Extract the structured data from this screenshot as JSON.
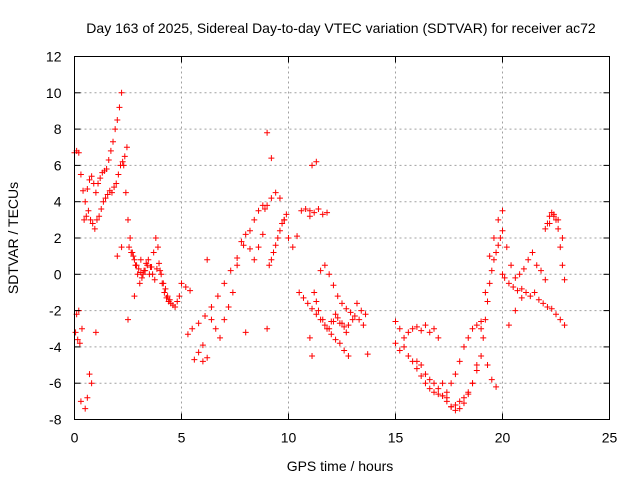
{
  "chart_data": {
    "type": "scatter",
    "title": "Day 163 of 2025, Sidereal Day-to-day VTEC variation (SDTVAR) for receiver ac72",
    "xlabel": "GPS time / hours",
    "ylabel": "SDTVAR / TECUs",
    "xlim": [
      0,
      25
    ],
    "ylim": [
      -8,
      12
    ],
    "xticks": [
      "0",
      "5",
      "10",
      "15",
      "20",
      "25"
    ],
    "yticks": [
      "-8",
      "-6",
      "-4",
      "-2",
      "0",
      "2",
      "4",
      "6",
      "8",
      "10",
      "12"
    ],
    "grid": true,
    "marker": "+",
    "color": "#ff0000",
    "series": [
      {
        "name": "SDTVAR",
        "x": [
          0.0,
          0.1,
          0.2,
          0.3,
          0.4,
          0.5,
          0.6,
          0.7,
          0.8,
          0.9,
          1.0,
          1.1,
          1.2,
          1.3,
          1.4,
          1.5,
          1.6,
          1.7,
          1.8,
          1.9,
          2.0,
          2.1,
          2.2,
          2.3,
          2.4,
          2.5,
          2.6,
          2.7,
          2.8,
          2.9,
          3.0,
          3.1,
          3.2,
          3.3,
          3.4,
          3.5,
          3.6,
          3.7,
          3.8,
          3.9,
          4.0,
          4.1,
          4.2,
          4.3,
          4.4,
          4.5,
          4.6,
          4.7,
          4.8,
          4.9,
          5.0,
          5.2,
          5.4,
          5.6,
          5.8,
          6.0,
          6.2,
          6.4,
          6.6,
          6.8,
          7.0,
          7.2,
          7.4,
          7.6,
          7.8,
          8.0,
          8.2,
          8.4,
          8.6,
          8.8,
          9.0,
          9.2,
          9.4,
          9.6,
          9.8,
          10.0,
          10.2,
          10.4,
          10.6,
          10.8,
          11.0,
          11.2,
          11.4,
          11.6,
          11.8,
          12.0,
          12.2,
          12.4,
          12.6,
          12.8,
          13.0,
          13.2,
          13.4,
          13.6,
          15.0,
          15.2,
          15.4,
          15.6,
          15.8,
          16.0,
          16.2,
          16.4,
          16.6,
          16.8,
          17.0,
          17.2,
          17.4,
          17.6,
          17.8,
          18.0,
          18.2,
          18.4,
          18.6,
          18.8,
          19.0,
          19.2,
          19.4,
          19.6,
          19.8,
          20.0,
          20.2,
          20.4,
          20.6,
          20.8,
          21.0,
          21.2,
          21.4,
          21.6,
          21.8,
          22.0,
          22.2,
          22.4,
          22.6,
          22.8,
          0.05,
          0.15,
          0.25,
          0.35,
          0.45,
          0.55,
          0.65,
          0.75,
          0.85,
          0.95,
          1.05,
          1.15,
          1.25,
          1.35,
          1.45,
          1.55,
          1.65,
          1.75,
          1.85,
          1.95,
          2.05,
          2.15,
          2.25,
          2.35,
          2.45,
          2.55,
          2.65,
          2.75,
          2.85,
          2.95,
          3.05,
          3.15,
          3.25,
          3.35,
          3.45,
          3.55,
          3.65,
          3.75,
          3.85,
          3.95,
          4.05,
          4.15,
          4.25,
          4.35,
          4.45,
          0.1,
          0.2,
          0.3,
          0.5,
          0.6,
          0.7,
          0.8,
          1.0,
          2.0,
          2.2,
          2.5,
          2.8,
          3.1,
          11.0,
          11.1,
          11.3,
          11.5,
          11.7,
          11.9,
          12.1,
          12.3,
          12.5,
          12.7,
          12.9,
          13.1,
          13.3,
          13.5,
          9.0,
          9.1,
          9.2,
          9.3,
          9.4,
          9.5,
          9.6,
          9.7,
          9.8,
          9.9,
          8.9,
          8.8,
          8.6,
          8.4,
          8.2,
          7.9,
          7.6,
          7.3,
          7.0,
          6.7,
          6.4,
          6.1,
          5.8,
          5.5,
          5.3,
          11.0,
          11.1,
          11.2,
          11.3,
          11.4,
          11.6,
          11.8,
          12.0,
          12.2,
          12.4,
          12.6,
          12.8,
          16.0,
          16.2,
          16.4,
          16.6,
          16.8,
          17.0,
          17.2,
          17.4,
          17.6,
          17.8,
          18.0,
          18.2,
          18.4,
          18.6,
          18.8,
          19.0,
          19.1,
          19.2,
          19.3,
          19.4,
          19.5,
          19.6,
          19.7,
          19.8,
          19.9,
          20.0,
          15.0,
          15.2,
          15.4,
          15.6,
          15.8,
          16.0,
          16.2,
          16.4,
          16.6,
          16.8,
          17.0,
          17.2,
          17.4,
          17.6,
          17.8,
          18.0,
          18.2,
          18.4,
          18.6,
          18.8,
          19.0,
          20.0,
          20.1,
          20.3,
          20.5,
          20.7,
          20.9,
          21.1,
          21.3,
          21.5,
          21.7,
          21.9,
          22.1,
          22.3,
          22.5,
          22.7,
          22.9,
          22.0,
          22.1,
          22.2,
          22.3,
          22.4,
          22.5,
          22.6,
          22.7,
          22.8,
          22.9,
          10.5,
          10.7,
          10.9,
          11.1,
          11.3,
          11.5,
          11.7,
          11.9,
          12.1,
          12.3,
          12.5,
          12.7,
          13.7,
          6.0,
          6.2,
          8.0,
          9.0,
          9.2,
          19.3,
          19.5,
          19.7,
          20.3,
          20.6,
          20.9
        ],
        "y": [
          6.7,
          6.8,
          6.7,
          5.5,
          4.6,
          4.0,
          4.7,
          5.2,
          5.4,
          5.0,
          4.5,
          5.0,
          5.3,
          5.6,
          5.7,
          5.8,
          6.3,
          6.8,
          7.3,
          8.0,
          8.5,
          9.2,
          10.0,
          6.0,
          4.5,
          3.0,
          2.0,
          1.2,
          0.8,
          0.5,
          0.3,
          0.1,
          0.0,
          0.2,
          0.5,
          0.0,
          0.4,
          1.2,
          2.0,
          1.5,
          0.2,
          -0.5,
          -1.0,
          -1.3,
          -1.5,
          -1.6,
          -1.7,
          -1.8,
          -1.5,
          -1.2,
          -0.5,
          -0.7,
          -0.9,
          -4.7,
          -4.3,
          -3.9,
          0.8,
          -2.5,
          -3.0,
          -3.5,
          -2.5,
          -1.8,
          -1.0,
          0.5,
          1.8,
          2.2,
          1.4,
          0.8,
          1.5,
          2.2,
          3.8,
          4.2,
          4.5,
          4.2,
          3.0,
          2.0,
          1.5,
          2.1,
          3.5,
          3.6,
          3.5,
          3.4,
          3.6,
          3.3,
          3.4,
          -2.6,
          -2.2,
          -2.7,
          -2.9,
          -2.8,
          -2.5,
          -1.6,
          -2.0,
          -2.2,
          -2.6,
          -3.0,
          -3.5,
          -3.2,
          -3.0,
          -2.9,
          -3.1,
          -2.8,
          -3.2,
          -3.0,
          -3.5,
          -6.0,
          -6.8,
          -7.3,
          -7.2,
          -7.0,
          -6.8,
          -6.5,
          -6.0,
          -5.0,
          -3.0,
          -1.0,
          1.0,
          2.0,
          3.0,
          3.5,
          1.5,
          0.5,
          -0.2,
          0.0,
          0.3,
          0.8,
          1.2,
          0.5,
          0.2,
          -0.3,
          2.8,
          3.2,
          3.0,
          2.0,
          -3.2,
          -3.6,
          -3.8,
          -3.0,
          3.0,
          3.2,
          3.5,
          3.0,
          2.8,
          2.5,
          3.0,
          3.2,
          3.6,
          4.0,
          4.2,
          4.4,
          4.6,
          4.5,
          4.8,
          5.0,
          5.5,
          6.0,
          6.2,
          6.5,
          7.0,
          1.5,
          1.2,
          1.0,
          0.5,
          0.0,
          -0.5,
          -0.2,
          0.2,
          0.6,
          0.8,
          0.4,
          0.0,
          -0.3,
          0.3,
          0.6,
          0.0,
          -0.5,
          -0.8,
          -1.2,
          -1.4,
          -2.2,
          -2.0,
          -7.0,
          -7.4,
          -6.8,
          -5.5,
          -6.0,
          -3.2,
          1.0,
          1.5,
          -2.5,
          -1.2,
          0.8,
          3.2,
          6.0,
          6.2,
          0.2,
          0.5,
          0.0,
          -0.6,
          -1.2,
          -1.6,
          -1.9,
          -2.1,
          -2.3,
          -2.5,
          -2.8,
          -3.0,
          0.5,
          0.8,
          1.2,
          1.6,
          2.0,
          2.4,
          2.8,
          3.0,
          3.3,
          3.6,
          3.8,
          3.5,
          3.0,
          2.4,
          1.6,
          0.9,
          0.2,
          -0.5,
          -1.2,
          -1.8,
          -2.3,
          -2.7,
          -3.0,
          -3.3,
          -3.5,
          -4.5,
          -1.0,
          -1.5,
          -2.0,
          -2.5,
          -3.0,
          -3.3,
          -3.6,
          -3.8,
          -4.2,
          -4.5,
          -4.8,
          -5.0,
          -5.5,
          -5.8,
          -6.0,
          -6.3,
          -6.7,
          -7.0,
          -7.3,
          -7.5,
          -7.4,
          -7.1,
          -6.6,
          -6.0,
          -5.3,
          -4.5,
          -3.5,
          -2.5,
          -1.5,
          -0.5,
          0.2,
          0.8,
          1.2,
          1.6,
          2.0,
          2.4,
          -3.8,
          -4.2,
          -4.0,
          -4.5,
          -4.8,
          -5.2,
          -5.6,
          -6.0,
          -6.3,
          -6.5,
          -6.6,
          -6.7,
          -6.5,
          -6.0,
          -5.5,
          -4.8,
          -4.0,
          -3.5,
          -3.0,
          -2.8,
          -2.6,
          0.0,
          -0.2,
          -0.5,
          -0.7,
          -0.9,
          -0.8,
          -1.0,
          -1.2,
          -1.0,
          -1.4,
          -1.6,
          -1.8,
          -1.9,
          -2.2,
          -2.5,
          -2.8,
          2.5,
          2.8,
          3.2,
          3.4,
          3.3,
          3.0,
          2.5,
          1.5,
          0.5,
          -0.3,
          -1.0,
          -1.3,
          -1.6,
          -1.9,
          -2.2,
          -2.5,
          -2.8,
          -3.0,
          -2.6,
          -2.4,
          -2.7,
          -3.2,
          -4.4,
          -4.8,
          -4.6,
          -3.2,
          7.8,
          6.4,
          -5.0,
          -5.8,
          -6.2,
          -2.8,
          -2.0,
          -1.3
        ],
        "marker": "+"
      }
    ]
  }
}
